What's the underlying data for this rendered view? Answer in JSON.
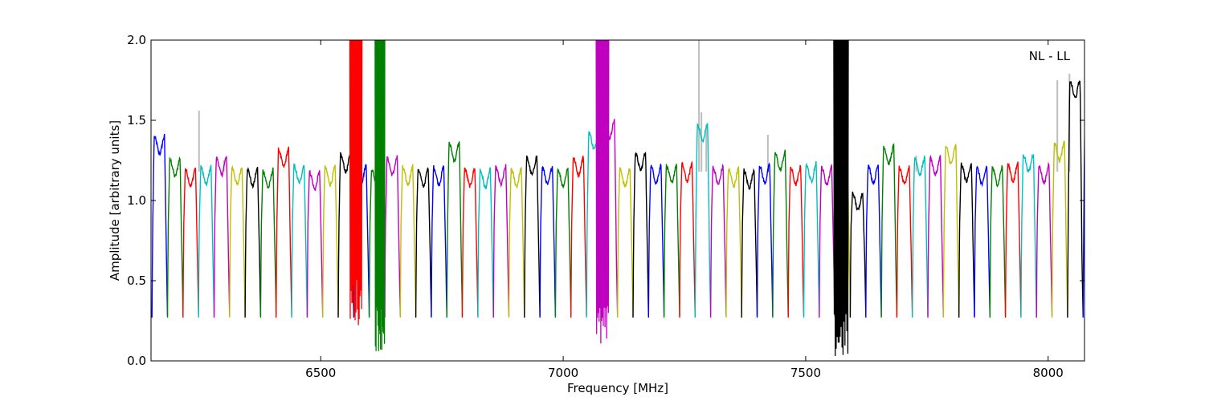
{
  "chart_data": {
    "type": "line",
    "title": "",
    "annotation": "NL - LL",
    "xlabel": "Frequency [MHz]",
    "ylabel": "Amplitude [arbitrary units]",
    "xlim": [
      6150,
      8075
    ],
    "ylim": [
      0,
      2.0
    ],
    "x_ticks": [
      6500,
      7000,
      7500,
      8000
    ],
    "x_tick_labels": [
      "6500",
      "7000",
      "7500",
      "8000"
    ],
    "y_ticks": [
      0.0,
      0.5,
      1.0,
      1.5,
      2.0
    ],
    "y_tick_labels": [
      "0.0",
      "0.5",
      "1.0",
      "1.5",
      "2.0"
    ],
    "grid": false,
    "legend": "none",
    "colors": {
      "blue": "#0000ff",
      "green": "#008000",
      "red": "#ff0000",
      "cyan": "#00bfbf",
      "magenta": "#bf00bf",
      "olive": "#bfbf00",
      "black": "#000000",
      "background_trace": "#bdbdbd"
    },
    "channel_width_mhz": 32,
    "channels": [
      {
        "start": 6152,
        "peak": 1.4,
        "color": "#0000ff"
      },
      {
        "start": 6184,
        "peak": 1.26,
        "color": "#008000"
      },
      {
        "start": 6216,
        "peak": 1.2,
        "color": "#ff0000"
      },
      {
        "start": 6248,
        "peak": 1.21,
        "color": "#00bfbf"
      },
      {
        "start": 6280,
        "peak": 1.27,
        "color": "#bf00bf"
      },
      {
        "start": 6312,
        "peak": 1.21,
        "color": "#bfbf00"
      },
      {
        "start": 6344,
        "peak": 1.2,
        "color": "#000000"
      },
      {
        "start": 6376,
        "peak": 1.19,
        "color": "#008000"
      },
      {
        "start": 6408,
        "peak": 1.32,
        "color": "#ff0000"
      },
      {
        "start": 6440,
        "peak": 1.22,
        "color": "#00bfbf"
      },
      {
        "start": 6472,
        "peak": 1.18,
        "color": "#bf00bf"
      },
      {
        "start": 6504,
        "peak": 1.21,
        "color": "#bfbf00"
      },
      {
        "start": 6536,
        "peak": 1.29,
        "color": "#000000"
      },
      {
        "start": 6568,
        "peak": 1.22,
        "color": "#0000ff"
      },
      {
        "start": 6600,
        "peak": 1.2,
        "color": "#008000"
      },
      {
        "start": 6632,
        "peak": 1.27,
        "color": "#bf00bf"
      },
      {
        "start": 6664,
        "peak": 1.21,
        "color": "#bfbf00"
      },
      {
        "start": 6696,
        "peak": 1.2,
        "color": "#000000"
      },
      {
        "start": 6728,
        "peak": 1.21,
        "color": "#0000ff"
      },
      {
        "start": 6760,
        "peak": 1.36,
        "color": "#008000"
      },
      {
        "start": 6792,
        "peak": 1.2,
        "color": "#ff0000"
      },
      {
        "start": 6824,
        "peak": 1.19,
        "color": "#00bfbf"
      },
      {
        "start": 6856,
        "peak": 1.21,
        "color": "#bf00bf"
      },
      {
        "start": 6888,
        "peak": 1.2,
        "color": "#bfbf00"
      },
      {
        "start": 6920,
        "peak": 1.27,
        "color": "#000000"
      },
      {
        "start": 6952,
        "peak": 1.21,
        "color": "#0000ff"
      },
      {
        "start": 6984,
        "peak": 1.2,
        "color": "#008000"
      },
      {
        "start": 7016,
        "peak": 1.27,
        "color": "#ff0000"
      },
      {
        "start": 7048,
        "peak": 1.43,
        "color": "#00bfbf"
      },
      {
        "start": 7080,
        "peak": 1.5,
        "color": "#bf00bf"
      },
      {
        "start": 7112,
        "peak": 1.2,
        "color": "#bfbf00"
      },
      {
        "start": 7144,
        "peak": 1.3,
        "color": "#000000"
      },
      {
        "start": 7176,
        "peak": 1.22,
        "color": "#0000ff"
      },
      {
        "start": 7208,
        "peak": 1.22,
        "color": "#008000"
      },
      {
        "start": 7240,
        "peak": 1.23,
        "color": "#ff0000"
      },
      {
        "start": 7272,
        "peak": 1.48,
        "color": "#00bfbf"
      },
      {
        "start": 7304,
        "peak": 1.21,
        "color": "#bf00bf"
      },
      {
        "start": 7336,
        "peak": 1.2,
        "color": "#bfbf00"
      },
      {
        "start": 7368,
        "peak": 1.19,
        "color": "#000000"
      },
      {
        "start": 7400,
        "peak": 1.22,
        "color": "#0000ff"
      },
      {
        "start": 7432,
        "peak": 1.3,
        "color": "#008000"
      },
      {
        "start": 7464,
        "peak": 1.21,
        "color": "#ff0000"
      },
      {
        "start": 7496,
        "peak": 1.23,
        "color": "#00bfbf"
      },
      {
        "start": 7528,
        "peak": 1.21,
        "color": "#bf00bf"
      },
      {
        "start": 7560,
        "peak": 1.41,
        "color": "#bfbf00"
      },
      {
        "start": 7592,
        "peak": 1.05,
        "color": "#000000"
      },
      {
        "start": 7624,
        "peak": 1.22,
        "color": "#0000ff"
      },
      {
        "start": 7656,
        "peak": 1.34,
        "color": "#008000"
      },
      {
        "start": 7688,
        "peak": 1.21,
        "color": "#ff0000"
      },
      {
        "start": 7720,
        "peak": 1.27,
        "color": "#00bfbf"
      },
      {
        "start": 7752,
        "peak": 1.27,
        "color": "#bf00bf"
      },
      {
        "start": 7784,
        "peak": 1.34,
        "color": "#bfbf00"
      },
      {
        "start": 7816,
        "peak": 1.23,
        "color": "#000000"
      },
      {
        "start": 7848,
        "peak": 1.21,
        "color": "#0000ff"
      },
      {
        "start": 7880,
        "peak": 1.21,
        "color": "#008000"
      },
      {
        "start": 7912,
        "peak": 1.23,
        "color": "#ff0000"
      },
      {
        "start": 7944,
        "peak": 1.29,
        "color": "#00bfbf"
      },
      {
        "start": 7976,
        "peak": 1.22,
        "color": "#bf00bf"
      },
      {
        "start": 8008,
        "peak": 1.36,
        "color": "#bfbf00"
      },
      {
        "start": 8040,
        "peak": 1.75,
        "color": "#000000"
      },
      {
        "start": 8072,
        "peak": 1.75,
        "color": "#0000ff"
      }
    ],
    "interference_regions": [
      {
        "from": 6560,
        "to": 6585,
        "color": "#ff0000",
        "min": 0.22,
        "max": 2.0
      },
      {
        "from": 6612,
        "to": 6632,
        "color": "#008000",
        "min": 0.06,
        "max": 2.0
      },
      {
        "from": 7068,
        "to": 7094,
        "color": "#bf00bf",
        "min": 0.05,
        "max": 2.0
      },
      {
        "from": 7558,
        "to": 7588,
        "color": "#000000",
        "min": 0.0,
        "max": 2.0
      }
    ],
    "gray_spikes": [
      {
        "x": 6249,
        "y": 1.56
      },
      {
        "x": 6300,
        "y": 1.25
      },
      {
        "x": 6584,
        "y": 1.58
      },
      {
        "x": 7280,
        "y": 2.0
      },
      {
        "x": 7285,
        "y": 1.55
      },
      {
        "x": 7295,
        "y": 1.45
      },
      {
        "x": 7422,
        "y": 1.41
      },
      {
        "x": 7728,
        "y": 1.28
      },
      {
        "x": 8019,
        "y": 1.75
      },
      {
        "x": 8044,
        "y": 1.79
      }
    ]
  }
}
